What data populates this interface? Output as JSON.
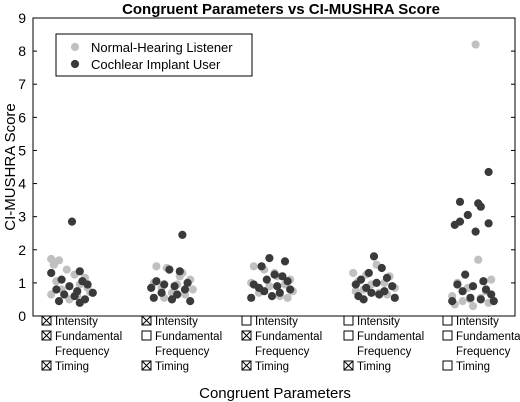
{
  "chart_data": {
    "type": "scatter",
    "title": "Congruent Parameters vs CI-MUSHRA Score",
    "xlabel": "Congruent Parameters",
    "ylabel": "CI-MUSHRA Score",
    "ylim": [
      0,
      9
    ],
    "yticks": [
      0,
      1,
      2,
      3,
      4,
      5,
      6,
      7,
      8,
      9
    ],
    "grid": false,
    "legend_position": "top-left",
    "parameter_labels": [
      "Intensity",
      "Fundamental",
      "Frequency",
      "Timing"
    ],
    "checked_glyph": "☒",
    "unchecked_glyph": "☐",
    "groups": [
      {
        "intensity": true,
        "fundamental_frequency": true,
        "timing": true
      },
      {
        "intensity": true,
        "fundamental_frequency": false,
        "timing": true
      },
      {
        "intensity": false,
        "fundamental_frequency": true,
        "timing": true
      },
      {
        "intensity": false,
        "fundamental_frequency": false,
        "timing": true
      },
      {
        "intensity": false,
        "fundamental_frequency": false,
        "timing": false
      }
    ],
    "series": [
      {
        "name": "Normal-Hearing Listener",
        "color": "#c0c0c0",
        "points": [
          {
            "group": 1,
            "offset": -0.4,
            "y": 1.72
          },
          {
            "group": 1,
            "offset": -0.25,
            "y": 1.68
          },
          {
            "group": 1,
            "offset": -0.35,
            "y": 1.55
          },
          {
            "group": 1,
            "offset": -0.1,
            "y": 1.4
          },
          {
            "group": 1,
            "offset": 0.05,
            "y": 1.25
          },
          {
            "group": 1,
            "offset": 0.25,
            "y": 1.15
          },
          {
            "group": 1,
            "offset": -0.3,
            "y": 1.05
          },
          {
            "group": 1,
            "offset": 0.15,
            "y": 0.95
          },
          {
            "group": 1,
            "offset": -0.2,
            "y": 0.8
          },
          {
            "group": 1,
            "offset": 0.35,
            "y": 0.72
          },
          {
            "group": 1,
            "offset": -0.4,
            "y": 0.65
          },
          {
            "group": 1,
            "offset": 0.1,
            "y": 0.6
          },
          {
            "group": 1,
            "offset": -0.05,
            "y": 0.5
          },
          {
            "group": 1,
            "offset": 0.3,
            "y": 0.85
          },
          {
            "group": 2,
            "offset": -0.3,
            "y": 1.5
          },
          {
            "group": 2,
            "offset": -0.1,
            "y": 1.45
          },
          {
            "group": 2,
            "offset": 0.2,
            "y": 1.3
          },
          {
            "group": 2,
            "offset": 0.35,
            "y": 1.1
          },
          {
            "group": 2,
            "offset": -0.35,
            "y": 1.0
          },
          {
            "group": 2,
            "offset": 0.1,
            "y": 0.95
          },
          {
            "group": 2,
            "offset": -0.2,
            "y": 0.85
          },
          {
            "group": 2,
            "offset": 0.4,
            "y": 0.8
          },
          {
            "group": 2,
            "offset": 0.0,
            "y": 0.7
          },
          {
            "group": 2,
            "offset": 0.25,
            "y": 0.65
          },
          {
            "group": 2,
            "offset": -0.15,
            "y": 0.55
          },
          {
            "group": 2,
            "offset": 0.15,
            "y": 1.2
          },
          {
            "group": 3,
            "offset": -0.35,
            "y": 1.5
          },
          {
            "group": 3,
            "offset": -0.15,
            "y": 1.4
          },
          {
            "group": 3,
            "offset": 0.1,
            "y": 1.2
          },
          {
            "group": 3,
            "offset": 0.35,
            "y": 1.1
          },
          {
            "group": 3,
            "offset": -0.4,
            "y": 1.0
          },
          {
            "group": 3,
            "offset": 0.25,
            "y": 0.95
          },
          {
            "group": 3,
            "offset": -0.05,
            "y": 0.9
          },
          {
            "group": 3,
            "offset": 0.4,
            "y": 0.75
          },
          {
            "group": 3,
            "offset": -0.25,
            "y": 0.7
          },
          {
            "group": 3,
            "offset": 0.15,
            "y": 0.6
          },
          {
            "group": 3,
            "offset": 0.3,
            "y": 0.55
          },
          {
            "group": 3,
            "offset": 0.05,
            "y": 1.3
          },
          {
            "group": 4,
            "offset": -0.4,
            "y": 1.3
          },
          {
            "group": 4,
            "offset": -0.15,
            "y": 1.25
          },
          {
            "group": 4,
            "offset": 0.05,
            "y": 1.55
          },
          {
            "group": 4,
            "offset": 0.3,
            "y": 1.2
          },
          {
            "group": 4,
            "offset": -0.3,
            "y": 1.05
          },
          {
            "group": 4,
            "offset": 0.2,
            "y": 1.0
          },
          {
            "group": 4,
            "offset": -0.05,
            "y": 0.95
          },
          {
            "group": 4,
            "offset": 0.4,
            "y": 0.85
          },
          {
            "group": 4,
            "offset": -0.2,
            "y": 0.8
          },
          {
            "group": 4,
            "offset": 0.1,
            "y": 0.7
          },
          {
            "group": 4,
            "offset": 0.25,
            "y": 0.65
          },
          {
            "group": 4,
            "offset": -0.35,
            "y": 0.75
          },
          {
            "group": 5,
            "offset": 0.05,
            "y": 8.2
          },
          {
            "group": 5,
            "offset": 0.1,
            "y": 1.7
          },
          {
            "group": 5,
            "offset": 0.35,
            "y": 1.1
          },
          {
            "group": 5,
            "offset": -0.3,
            "y": 1.0
          },
          {
            "group": 5,
            "offset": -0.1,
            "y": 0.85
          },
          {
            "group": 5,
            "offset": 0.25,
            "y": 0.75
          },
          {
            "group": 5,
            "offset": -0.4,
            "y": 0.6
          },
          {
            "group": 5,
            "offset": 0.15,
            "y": 0.55
          },
          {
            "group": 5,
            "offset": -0.2,
            "y": 0.45
          },
          {
            "group": 5,
            "offset": 0.3,
            "y": 0.4
          },
          {
            "group": 5,
            "offset": -0.35,
            "y": 0.35
          },
          {
            "group": 5,
            "offset": 0.0,
            "y": 0.3
          },
          {
            "group": 5,
            "offset": 0.4,
            "y": 0.45
          },
          {
            "group": 5,
            "offset": -0.05,
            "y": 0.5
          }
        ]
      },
      {
        "name": "Cochlear Implant User",
        "color": "#3a3a3a",
        "points": [
          {
            "group": 1,
            "offset": 0.0,
            "y": 2.85
          },
          {
            "group": 1,
            "offset": -0.4,
            "y": 1.3
          },
          {
            "group": 1,
            "offset": 0.15,
            "y": 1.35
          },
          {
            "group": 1,
            "offset": -0.2,
            "y": 1.1
          },
          {
            "group": 1,
            "offset": 0.2,
            "y": 1.05
          },
          {
            "group": 1,
            "offset": 0.3,
            "y": 0.95
          },
          {
            "group": 1,
            "offset": -0.05,
            "y": 0.9
          },
          {
            "group": 1,
            "offset": -0.3,
            "y": 0.8
          },
          {
            "group": 1,
            "offset": 0.1,
            "y": 0.75
          },
          {
            "group": 1,
            "offset": 0.4,
            "y": 0.7
          },
          {
            "group": 1,
            "offset": -0.15,
            "y": 0.65
          },
          {
            "group": 1,
            "offset": 0.05,
            "y": 0.6
          },
          {
            "group": 1,
            "offset": 0.25,
            "y": 0.5
          },
          {
            "group": 1,
            "offset": -0.25,
            "y": 0.45
          },
          {
            "group": 1,
            "offset": 0.15,
            "y": 0.4
          },
          {
            "group": 2,
            "offset": 0.2,
            "y": 2.45
          },
          {
            "group": 2,
            "offset": -0.05,
            "y": 1.4
          },
          {
            "group": 2,
            "offset": 0.15,
            "y": 1.35
          },
          {
            "group": 2,
            "offset": -0.3,
            "y": 1.05
          },
          {
            "group": 2,
            "offset": 0.3,
            "y": 1.0
          },
          {
            "group": 2,
            "offset": -0.15,
            "y": 0.95
          },
          {
            "group": 2,
            "offset": 0.05,
            "y": 0.9
          },
          {
            "group": 2,
            "offset": -0.4,
            "y": 0.85
          },
          {
            "group": 2,
            "offset": 0.25,
            "y": 0.8
          },
          {
            "group": 2,
            "offset": -0.2,
            "y": 0.7
          },
          {
            "group": 2,
            "offset": 0.1,
            "y": 0.65
          },
          {
            "group": 2,
            "offset": -0.35,
            "y": 0.55
          },
          {
            "group": 2,
            "offset": 0.0,
            "y": 0.5
          },
          {
            "group": 2,
            "offset": 0.35,
            "y": 0.45
          },
          {
            "group": 3,
            "offset": -0.05,
            "y": 1.75
          },
          {
            "group": 3,
            "offset": 0.25,
            "y": 1.65
          },
          {
            "group": 3,
            "offset": -0.2,
            "y": 1.5
          },
          {
            "group": 3,
            "offset": 0.05,
            "y": 1.25
          },
          {
            "group": 3,
            "offset": 0.2,
            "y": 1.2
          },
          {
            "group": 3,
            "offset": -0.1,
            "y": 1.1
          },
          {
            "group": 3,
            "offset": 0.3,
            "y": 1.05
          },
          {
            "group": 3,
            "offset": -0.35,
            "y": 0.95
          },
          {
            "group": 3,
            "offset": 0.1,
            "y": 0.9
          },
          {
            "group": 3,
            "offset": -0.25,
            "y": 0.85
          },
          {
            "group": 3,
            "offset": 0.35,
            "y": 0.8
          },
          {
            "group": 3,
            "offset": -0.15,
            "y": 0.75
          },
          {
            "group": 3,
            "offset": 0.15,
            "y": 0.7
          },
          {
            "group": 3,
            "offset": 0.0,
            "y": 0.6
          },
          {
            "group": 3,
            "offset": -0.4,
            "y": 0.55
          },
          {
            "group": 4,
            "offset": 0.0,
            "y": 1.8
          },
          {
            "group": 4,
            "offset": 0.15,
            "y": 1.45
          },
          {
            "group": 4,
            "offset": -0.1,
            "y": 1.3
          },
          {
            "group": 4,
            "offset": 0.25,
            "y": 1.15
          },
          {
            "group": 4,
            "offset": -0.25,
            "y": 1.1
          },
          {
            "group": 4,
            "offset": 0.05,
            "y": 1.0
          },
          {
            "group": 4,
            "offset": -0.35,
            "y": 0.95
          },
          {
            "group": 4,
            "offset": 0.35,
            "y": 0.9
          },
          {
            "group": 4,
            "offset": -0.15,
            "y": 0.85
          },
          {
            "group": 4,
            "offset": 0.2,
            "y": 0.75
          },
          {
            "group": 4,
            "offset": -0.05,
            "y": 0.7
          },
          {
            "group": 4,
            "offset": 0.1,
            "y": 0.65
          },
          {
            "group": 4,
            "offset": -0.3,
            "y": 0.6
          },
          {
            "group": 4,
            "offset": 0.4,
            "y": 0.55
          },
          {
            "group": 4,
            "offset": -0.2,
            "y": 0.5
          },
          {
            "group": 5,
            "offset": 0.3,
            "y": 4.35
          },
          {
            "group": 5,
            "offset": -0.25,
            "y": 3.45
          },
          {
            "group": 5,
            "offset": 0.1,
            "y": 3.4
          },
          {
            "group": 5,
            "offset": 0.15,
            "y": 3.3
          },
          {
            "group": 5,
            "offset": -0.1,
            "y": 3.05
          },
          {
            "group": 5,
            "offset": -0.25,
            "y": 2.85
          },
          {
            "group": 5,
            "offset": -0.35,
            "y": 2.75
          },
          {
            "group": 5,
            "offset": 0.3,
            "y": 2.8
          },
          {
            "group": 5,
            "offset": 0.05,
            "y": 2.55
          },
          {
            "group": 5,
            "offset": -0.15,
            "y": 1.25
          },
          {
            "group": 5,
            "offset": 0.2,
            "y": 1.05
          },
          {
            "group": 5,
            "offset": -0.3,
            "y": 0.95
          },
          {
            "group": 5,
            "offset": 0.0,
            "y": 0.9
          },
          {
            "group": 5,
            "offset": 0.25,
            "y": 0.8
          },
          {
            "group": 5,
            "offset": -0.2,
            "y": 0.75
          },
          {
            "group": 5,
            "offset": 0.35,
            "y": 0.65
          },
          {
            "group": 5,
            "offset": -0.05,
            "y": 0.55
          },
          {
            "group": 5,
            "offset": 0.15,
            "y": 0.5
          },
          {
            "group": 5,
            "offset": -0.4,
            "y": 0.45
          },
          {
            "group": 5,
            "offset": 0.4,
            "y": 0.45
          }
        ]
      }
    ]
  }
}
